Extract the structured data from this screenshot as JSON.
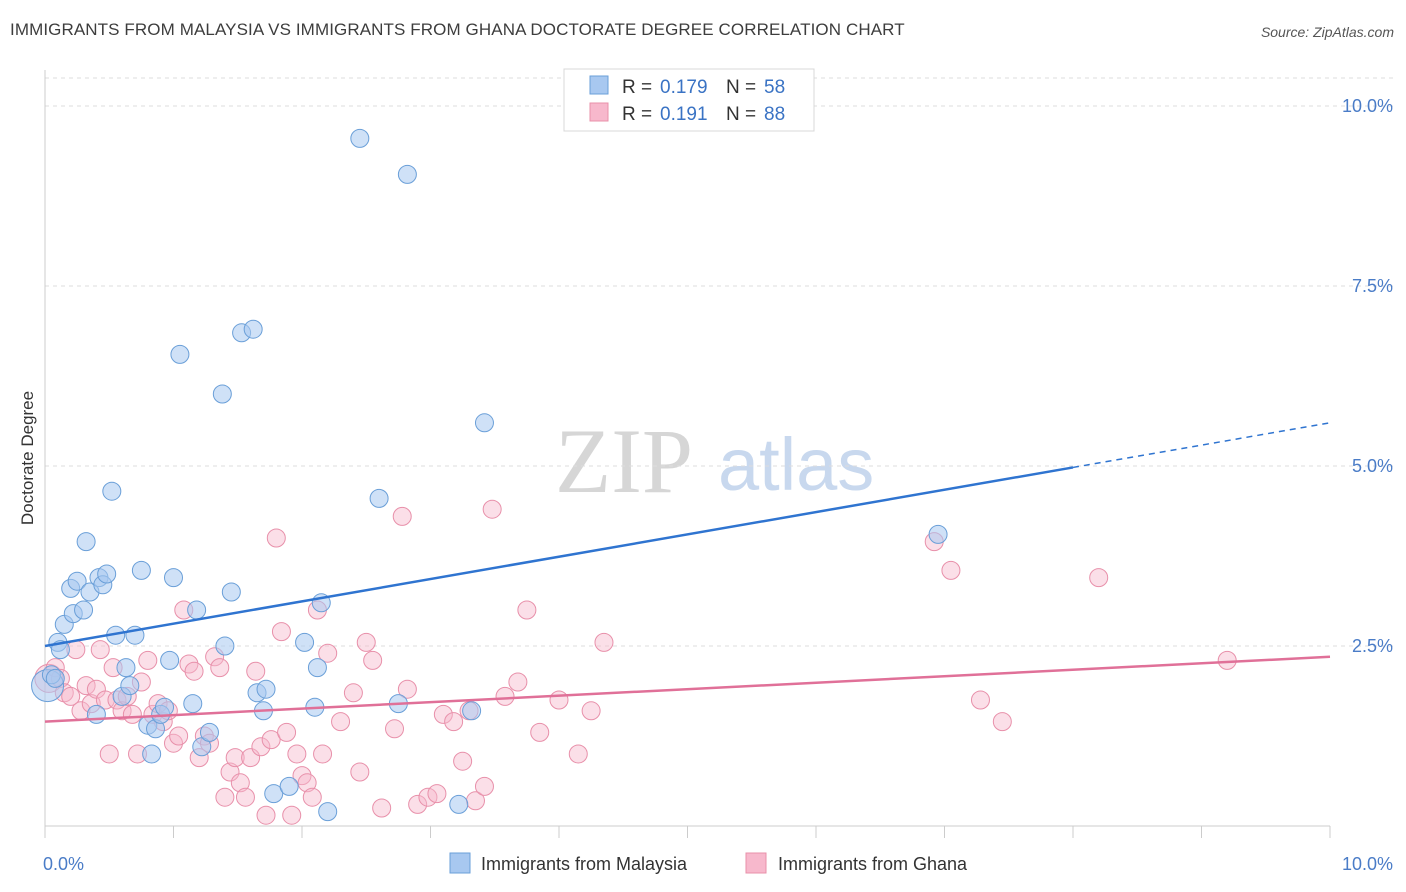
{
  "title": "IMMIGRANTS FROM MALAYSIA VS IMMIGRANTS FROM GHANA DOCTORATE DEGREE CORRELATION CHART",
  "source": "Source: ZipAtlas.com",
  "watermark": {
    "zip": "ZIP",
    "atlas": "atlas"
  },
  "colors": {
    "malaysia_fill": "#a8c8f0",
    "malaysia_stroke": "#6a9fd8",
    "malaysia_line": "#2f74d0",
    "ghana_fill": "#f7b8cc",
    "ghana_stroke": "#e890aa",
    "ghana_line": "#e07098",
    "tick_text": "#4a7cc7",
    "grid": "#dddddd"
  },
  "legend": {
    "rows": [
      {
        "r_label": "R =",
        "r_value": "0.179",
        "n_label": "N =",
        "n_value": "58"
      },
      {
        "r_label": "R =",
        "r_value": "0.191",
        "n_label": "N =",
        "n_value": "88"
      }
    ]
  },
  "chart_data": {
    "type": "scatter",
    "title": "IMMIGRANTS FROM MALAYSIA VS IMMIGRANTS FROM GHANA DOCTORATE DEGREE CORRELATION CHART",
    "xlabel": "",
    "ylabel": "Doctorate Degree",
    "xlim": [
      0,
      10
    ],
    "ylim": [
      0,
      10.5
    ],
    "x_tick_labels": [
      "0.0%",
      "10.0%"
    ],
    "y_ticks": [
      2.5,
      5.0,
      7.5,
      10.0
    ],
    "y_tick_labels": [
      "2.5%",
      "5.0%",
      "7.5%",
      "10.0%"
    ],
    "grid": true,
    "legend_position": "top-center",
    "series": [
      {
        "name": "Immigrants from Malaysia",
        "R": 0.179,
        "N": 58,
        "trend": {
          "x0": 0,
          "y0": 2.5,
          "x1": 8.0,
          "y1": 4.98,
          "dashed_to_x": 10,
          "dashed_to_y": 5.6
        },
        "points": [
          [
            0.02,
            1.95
          ],
          [
            0.05,
            2.1
          ],
          [
            0.08,
            2.05
          ],
          [
            0.1,
            2.55
          ],
          [
            0.12,
            2.45
          ],
          [
            0.15,
            2.8
          ],
          [
            0.2,
            3.3
          ],
          [
            0.22,
            2.95
          ],
          [
            0.25,
            3.4
          ],
          [
            0.3,
            3.0
          ],
          [
            0.32,
            3.95
          ],
          [
            0.35,
            3.25
          ],
          [
            0.4,
            1.55
          ],
          [
            0.42,
            3.45
          ],
          [
            0.45,
            3.35
          ],
          [
            0.48,
            3.5
          ],
          [
            0.52,
            4.65
          ],
          [
            0.55,
            2.65
          ],
          [
            0.6,
            1.8
          ],
          [
            0.63,
            2.2
          ],
          [
            0.66,
            1.95
          ],
          [
            0.7,
            2.65
          ],
          [
            0.75,
            3.55
          ],
          [
            0.8,
            1.4
          ],
          [
            0.83,
            1.0
          ],
          [
            0.86,
            1.35
          ],
          [
            0.9,
            1.55
          ],
          [
            0.93,
            1.65
          ],
          [
            0.97,
            2.3
          ],
          [
            1.0,
            3.45
          ],
          [
            1.05,
            6.55
          ],
          [
            1.15,
            1.7
          ],
          [
            1.18,
            3.0
          ],
          [
            1.22,
            1.1
          ],
          [
            1.28,
            1.3
          ],
          [
            1.38,
            6.0
          ],
          [
            1.4,
            2.5
          ],
          [
            1.45,
            3.25
          ],
          [
            1.53,
            6.85
          ],
          [
            1.62,
            6.9
          ],
          [
            1.65,
            1.85
          ],
          [
            1.7,
            1.6
          ],
          [
            1.72,
            1.9
          ],
          [
            1.78,
            0.45
          ],
          [
            1.9,
            0.55
          ],
          [
            2.02,
            2.55
          ],
          [
            2.1,
            1.65
          ],
          [
            2.12,
            2.2
          ],
          [
            2.15,
            3.1
          ],
          [
            2.2,
            0.2
          ],
          [
            2.45,
            9.55
          ],
          [
            2.6,
            4.55
          ],
          [
            2.75,
            1.7
          ],
          [
            2.82,
            9.05
          ],
          [
            3.22,
            0.3
          ],
          [
            3.32,
            1.6
          ],
          [
            3.42,
            5.6
          ],
          [
            6.95,
            4.05
          ]
        ]
      },
      {
        "name": "Immigrants from Ghana",
        "R": 0.191,
        "N": 88,
        "trend": {
          "x0": 0,
          "y0": 1.45,
          "x1": 10,
          "y1": 2.35
        },
        "points": [
          [
            0.03,
            2.05
          ],
          [
            0.08,
            2.2
          ],
          [
            0.12,
            2.05
          ],
          [
            0.15,
            1.85
          ],
          [
            0.2,
            1.8
          ],
          [
            0.24,
            2.45
          ],
          [
            0.28,
            1.6
          ],
          [
            0.32,
            1.95
          ],
          [
            0.36,
            1.7
          ],
          [
            0.4,
            1.9
          ],
          [
            0.43,
            2.45
          ],
          [
            0.47,
            1.75
          ],
          [
            0.5,
            1.0
          ],
          [
            0.53,
            2.2
          ],
          [
            0.56,
            1.75
          ],
          [
            0.6,
            1.6
          ],
          [
            0.64,
            1.8
          ],
          [
            0.68,
            1.55
          ],
          [
            0.72,
            1.0
          ],
          [
            0.75,
            2.0
          ],
          [
            0.8,
            2.3
          ],
          [
            0.84,
            1.55
          ],
          [
            0.88,
            1.7
          ],
          [
            0.92,
            1.45
          ],
          [
            0.96,
            1.6
          ],
          [
            1.0,
            1.15
          ],
          [
            1.04,
            1.25
          ],
          [
            1.08,
            3.0
          ],
          [
            1.12,
            2.25
          ],
          [
            1.16,
            2.15
          ],
          [
            1.2,
            0.95
          ],
          [
            1.24,
            1.25
          ],
          [
            1.28,
            1.15
          ],
          [
            1.32,
            2.35
          ],
          [
            1.36,
            2.2
          ],
          [
            1.4,
            0.4
          ],
          [
            1.44,
            0.75
          ],
          [
            1.48,
            0.95
          ],
          [
            1.52,
            0.6
          ],
          [
            1.56,
            0.4
          ],
          [
            1.6,
            0.95
          ],
          [
            1.64,
            2.15
          ],
          [
            1.68,
            1.1
          ],
          [
            1.72,
            0.15
          ],
          [
            1.76,
            1.2
          ],
          [
            1.8,
            4.0
          ],
          [
            1.84,
            2.7
          ],
          [
            1.88,
            1.3
          ],
          [
            1.92,
            0.15
          ],
          [
            1.96,
            1.0
          ],
          [
            2.0,
            0.7
          ],
          [
            2.04,
            0.6
          ],
          [
            2.08,
            0.4
          ],
          [
            2.12,
            3.0
          ],
          [
            2.16,
            1.0
          ],
          [
            2.2,
            2.4
          ],
          [
            2.3,
            1.45
          ],
          [
            2.4,
            1.85
          ],
          [
            2.45,
            0.75
          ],
          [
            2.5,
            2.55
          ],
          [
            2.55,
            2.3
          ],
          [
            2.62,
            0.25
          ],
          [
            2.72,
            1.35
          ],
          [
            2.78,
            4.3
          ],
          [
            2.82,
            1.9
          ],
          [
            2.9,
            0.3
          ],
          [
            2.98,
            0.4
          ],
          [
            3.05,
            0.45
          ],
          [
            3.1,
            1.55
          ],
          [
            3.18,
            1.45
          ],
          [
            3.25,
            0.9
          ],
          [
            3.3,
            1.6
          ],
          [
            3.35,
            0.35
          ],
          [
            3.42,
            0.55
          ],
          [
            3.48,
            4.4
          ],
          [
            3.58,
            1.8
          ],
          [
            3.68,
            2.0
          ],
          [
            3.75,
            3.0
          ],
          [
            3.85,
            1.3
          ],
          [
            4.0,
            1.75
          ],
          [
            4.15,
            1.0
          ],
          [
            4.25,
            1.6
          ],
          [
            4.35,
            2.55
          ],
          [
            6.92,
            3.95
          ],
          [
            7.05,
            3.55
          ],
          [
            7.28,
            1.75
          ],
          [
            7.45,
            1.45
          ],
          [
            8.2,
            3.45
          ],
          [
            9.2,
            2.3
          ]
        ]
      }
    ]
  },
  "bottom_legend": [
    {
      "label": "Immigrants from Malaysia"
    },
    {
      "label": "Immigrants from Ghana"
    }
  ]
}
